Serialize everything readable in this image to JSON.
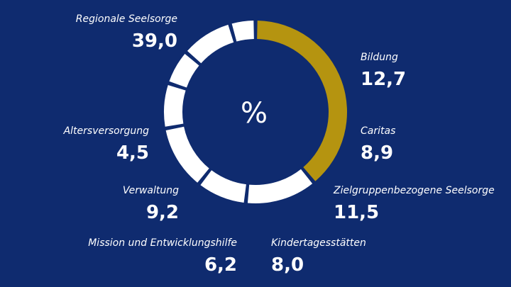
{
  "chart_data": {
    "type": "pie",
    "variant": "donut",
    "unit_label": "%",
    "categories": [
      "Regionale Seelsorge",
      "Bildung",
      "Caritas",
      "Zielgruppenbezogene Seelsorge",
      "Kindertagesstätten",
      "Mission und Entwicklungshilfe",
      "Verwaltung",
      "Altersversorgung"
    ],
    "values": [
      39.0,
      12.7,
      8.9,
      11.5,
      8.0,
      6.2,
      9.2,
      4.5
    ],
    "value_labels": [
      "39,0",
      "12,7",
      "8,9",
      "11,5",
      "8,0",
      "6,2",
      "9,2",
      "4,5"
    ],
    "highlight_index": 0,
    "start_angle_deg": 270,
    "direction": "clockwise"
  },
  "colors": {
    "background": "#0f2b6f",
    "highlight": "#b59410",
    "segment": "#ffffff"
  }
}
